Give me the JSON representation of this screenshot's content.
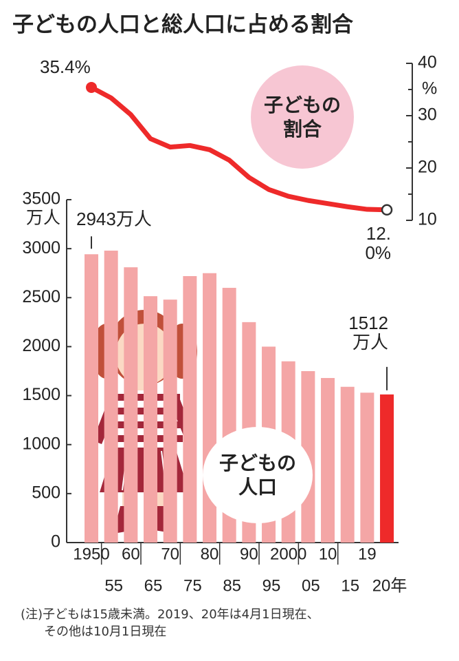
{
  "chart_data": {
    "type": "bar",
    "title": "子どもの人口と総人口に占める割合",
    "categories": [
      "1950",
      "55",
      "60",
      "65",
      "70",
      "75",
      "80",
      "85",
      "90",
      "95",
      "2000",
      "05",
      "10",
      "15",
      "19",
      "20年"
    ],
    "series": [
      {
        "name": "子どもの人口",
        "type": "bar",
        "colors": [
          "#f4a6a6",
          "#f4a6a6",
          "#f4a6a6",
          "#f4a6a6",
          "#f4a6a6",
          "#f4a6a6",
          "#f4a6a6",
          "#f4a6a6",
          "#f4a6a6",
          "#f4a6a6",
          "#f4a6a6",
          "#f4a6a6",
          "#f4a6a6",
          "#f4a6a6",
          "#f4a6a6",
          "#ee2a2a"
        ],
        "values": [
          2943,
          2980,
          2810,
          2515,
          2480,
          2720,
          2750,
          2600,
          2250,
          2000,
          1850,
          1750,
          1680,
          1590,
          1530,
          1512
        ],
        "value_labels": [
          "2943万人",
          null,
          null,
          null,
          null,
          null,
          null,
          null,
          null,
          null,
          null,
          null,
          null,
          null,
          null,
          "1512万人"
        ]
      },
      {
        "name": "子どもの割合",
        "type": "line",
        "axis": "y2",
        "color": "#ee2a2a",
        "values": [
          35.4,
          33.4,
          30.2,
          25.6,
          24.0,
          24.3,
          23.5,
          21.5,
          18.2,
          15.9,
          14.6,
          13.8,
          13.2,
          12.6,
          12.1,
          12.0
        ],
        "value_labels": [
          "35.4%",
          null,
          null,
          null,
          null,
          null,
          null,
          null,
          null,
          null,
          null,
          null,
          null,
          null,
          null,
          "12.0%"
        ]
      }
    ],
    "y_unit": "万人",
    "y2_unit": "%",
    "ylim": [
      0,
      3500
    ],
    "yticks": [
      0,
      500,
      1000,
      1500,
      2000,
      2500,
      3000,
      3500
    ],
    "y2lim": [
      10,
      40
    ],
    "y2ticks": [
      10,
      20,
      30,
      40
    ],
    "y2minorticks": [
      15,
      25,
      35
    ],
    "notes": [
      "(注)子どもは15歳未満。2019、20年は4月1日現在、",
      "その他は10月1日現在"
    ]
  }
}
